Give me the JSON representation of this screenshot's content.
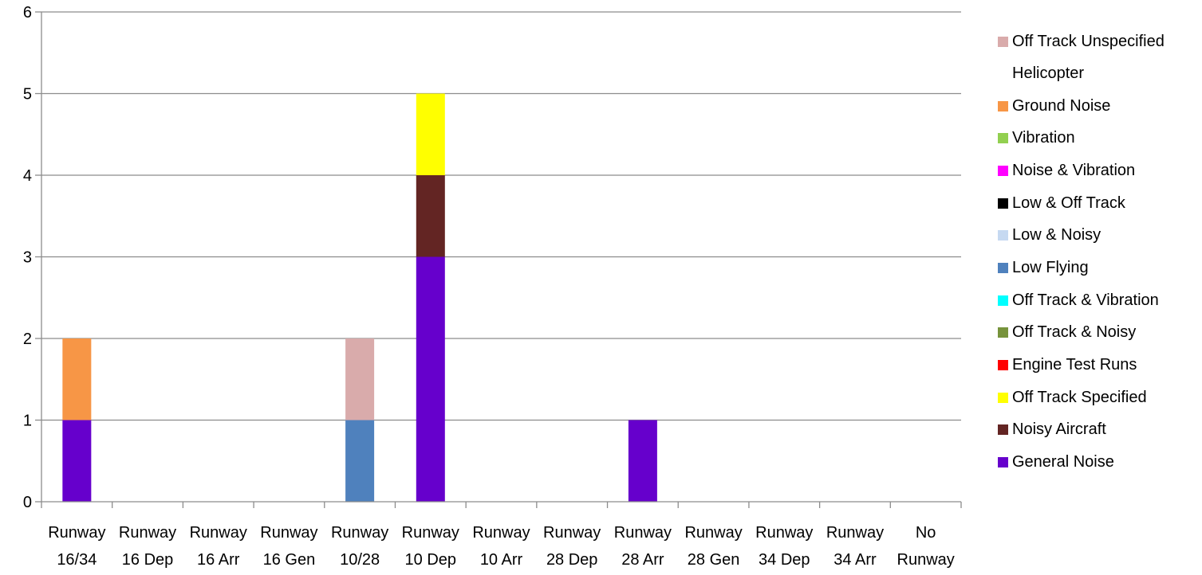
{
  "chart_data": {
    "type": "bar",
    "stacked": true,
    "title": "",
    "xlabel": "",
    "ylabel": "",
    "ylim": [
      0,
      6
    ],
    "yticks": [
      "0",
      "1",
      "2",
      "3",
      "4",
      "5",
      "6"
    ],
    "grid": true,
    "legend_position": "right",
    "categories": [
      [
        "Runway",
        "16/34"
      ],
      [
        "Runway",
        "16 Dep"
      ],
      [
        "Runway",
        "16 Arr"
      ],
      [
        "Runway",
        "16 Gen"
      ],
      [
        "Runway",
        "10/28"
      ],
      [
        "Runway",
        "10 Dep"
      ],
      [
        "Runway",
        "10 Arr"
      ],
      [
        "Runway",
        "28 Dep"
      ],
      [
        "Runway",
        "28 Arr"
      ],
      [
        "Runway",
        "28 Gen"
      ],
      [
        "Runway",
        "34 Dep"
      ],
      [
        "Runway",
        "34 Arr"
      ],
      [
        "No",
        "Runway"
      ]
    ],
    "series": [
      {
        "name": "General Noise",
        "color": "#6600CC",
        "values": [
          1,
          0,
          0,
          0,
          0,
          3,
          0,
          0,
          1,
          0,
          0,
          0,
          0
        ]
      },
      {
        "name": "Noisy Aircraft",
        "color": "#632523",
        "values": [
          0,
          0,
          0,
          0,
          0,
          1,
          0,
          0,
          0,
          0,
          0,
          0,
          0
        ]
      },
      {
        "name": "Off Track Specified",
        "color": "#FFFF00",
        "values": [
          0,
          0,
          0,
          0,
          0,
          1,
          0,
          0,
          0,
          0,
          0,
          0,
          0
        ]
      },
      {
        "name": "Engine Test Runs",
        "color": "#FF0000",
        "values": [
          0,
          0,
          0,
          0,
          0,
          0,
          0,
          0,
          0,
          0,
          0,
          0,
          0
        ]
      },
      {
        "name": "Off Track & Noisy",
        "color": "#77933C",
        "values": [
          0,
          0,
          0,
          0,
          0,
          0,
          0,
          0,
          0,
          0,
          0,
          0,
          0
        ]
      },
      {
        "name": "Off Track & Vibration",
        "color": "#00FFFF",
        "values": [
          0,
          0,
          0,
          0,
          0,
          0,
          0,
          0,
          0,
          0,
          0,
          0,
          0
        ]
      },
      {
        "name": "Low Flying",
        "color": "#4F81BD",
        "values": [
          0,
          0,
          0,
          0,
          1,
          0,
          0,
          0,
          0,
          0,
          0,
          0,
          0
        ]
      },
      {
        "name": "Low & Noisy",
        "color": "#C6D9F1",
        "values": [
          0,
          0,
          0,
          0,
          0,
          0,
          0,
          0,
          0,
          0,
          0,
          0,
          0
        ]
      },
      {
        "name": "Low & Off Track",
        "color": "#000000",
        "values": [
          0,
          0,
          0,
          0,
          0,
          0,
          0,
          0,
          0,
          0,
          0,
          0,
          0
        ]
      },
      {
        "name": "Noise & Vibration",
        "color": "#FF00FF",
        "values": [
          0,
          0,
          0,
          0,
          0,
          0,
          0,
          0,
          0,
          0,
          0,
          0,
          0
        ]
      },
      {
        "name": "Vibration",
        "color": "#92D050",
        "values": [
          0,
          0,
          0,
          0,
          0,
          0,
          0,
          0,
          0,
          0,
          0,
          0,
          0
        ]
      },
      {
        "name": "Ground Noise",
        "color": "#F79646",
        "values": [
          1,
          0,
          0,
          0,
          0,
          0,
          0,
          0,
          0,
          0,
          0,
          0,
          0
        ]
      },
      {
        "name": "Helicopter",
        "color": "",
        "values": [
          0,
          0,
          0,
          0,
          0,
          0,
          0,
          0,
          0,
          0,
          0,
          0,
          0
        ]
      },
      {
        "name": "Off Track Unspecified",
        "color": "#D9ABAB",
        "values": [
          0,
          0,
          0,
          0,
          1,
          0,
          0,
          0,
          0,
          0,
          0,
          0,
          0
        ]
      }
    ]
  }
}
